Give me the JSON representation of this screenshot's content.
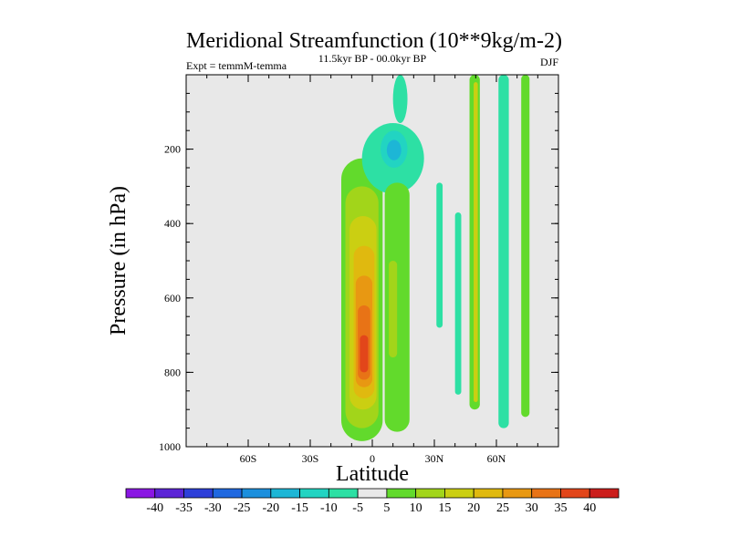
{
  "chart_data": {
    "type": "heatmap",
    "title": "Meridional Streamfunction (10**9kg/m-2)",
    "subtitle_left": "Expt = temmM-temma",
    "subtitle_center": "11.5kyr BP - 00.0kyr BP",
    "subtitle_right": "DJF",
    "xlabel": "Latitude",
    "ylabel": "Pressure (in hPa)",
    "xlim": [
      -90,
      90
    ],
    "ylim": [
      1000,
      0
    ],
    "x_ticks": [
      {
        "value": -60,
        "label": "60S"
      },
      {
        "value": -30,
        "label": "30S"
      },
      {
        "value": 0,
        "label": "0"
      },
      {
        "value": 30,
        "label": "30N"
      },
      {
        "value": 60,
        "label": "60N"
      }
    ],
    "y_ticks": [
      {
        "value": 200,
        "label": "200"
      },
      {
        "value": 400,
        "label": "400"
      },
      {
        "value": 600,
        "label": "600"
      },
      {
        "value": 800,
        "label": "800"
      },
      {
        "value": 1000,
        "label": "1000"
      }
    ],
    "colorbar": {
      "labels": [
        "-40",
        "-35",
        "-30",
        "-25",
        "-20",
        "-15",
        "-10",
        "-5",
        "5",
        "10",
        "15",
        "20",
        "25",
        "30",
        "35",
        "40"
      ],
      "colors": [
        "#8a17e3",
        "#5c24d6",
        "#2d3fd9",
        "#1f68e0",
        "#1c8fdd",
        "#1db6d6",
        "#22d4c2",
        "#2de0a4",
        "#e8e8e8",
        "#62da2c",
        "#a2d51a",
        "#cbcf12",
        "#e0b90f",
        "#e89812",
        "#e87316",
        "#e2461a",
        "#cc1e1c"
      ]
    },
    "regions": [
      {
        "name": "southern-hemisphere-cell-5",
        "level": 5,
        "lat_min": -15,
        "lat_max": 5,
        "p_min": 225,
        "p_max": 985
      },
      {
        "name": "southern-hemisphere-cell-10",
        "level": 10,
        "lat_min": -13,
        "lat_max": 3,
        "p_min": 300,
        "p_max": 950
      },
      {
        "name": "southern-hemisphere-cell-15",
        "level": 15,
        "lat_min": -11,
        "lat_max": 2,
        "p_min": 380,
        "p_max": 900
      },
      {
        "name": "southern-hemisphere-cell-20",
        "level": 20,
        "lat_min": -9,
        "lat_max": 1,
        "p_min": 460,
        "p_max": 870
      },
      {
        "name": "southern-hemisphere-cell-25",
        "level": 25,
        "lat_min": -8,
        "lat_max": 0,
        "p_min": 540,
        "p_max": 840
      },
      {
        "name": "southern-hemisphere-cell-30",
        "level": 30,
        "lat_min": -7,
        "lat_max": -1,
        "p_min": 620,
        "p_max": 820
      },
      {
        "name": "southern-hemisphere-cell-35",
        "level": 35,
        "lat_min": -6,
        "lat_max": -2,
        "p_min": 700,
        "p_max": 800
      },
      {
        "name": "tropical-upper-cell-neg5",
        "level": -5,
        "lat_min": -5,
        "lat_max": 25,
        "p_min": 130,
        "p_max": 320
      },
      {
        "name": "tropical-upper-cell-neg10",
        "level": -10,
        "lat_min": 4,
        "lat_max": 17,
        "p_min": 150,
        "p_max": 250
      },
      {
        "name": "tropical-upper-cell-neg15",
        "level": -15,
        "lat_min": 7,
        "lat_max": 14,
        "p_min": 175,
        "p_max": 230
      },
      {
        "name": "upper-plume-neg5",
        "level": -5,
        "lat_min": 10,
        "lat_max": 17,
        "p_min": 0,
        "p_max": 130
      },
      {
        "name": "northern-cell-5",
        "level": 5,
        "lat_min": 6,
        "lat_max": 18,
        "p_min": 290,
        "p_max": 960
      },
      {
        "name": "northern-cell-10",
        "level": 10,
        "lat_min": 8,
        "lat_max": 12,
        "p_min": 500,
        "p_max": 760
      },
      {
        "name": "band-neg5-a",
        "level": -5,
        "lat_min": 31,
        "lat_max": 34,
        "p_min": 290,
        "p_max": 680
      },
      {
        "name": "band-neg5-b",
        "level": -5,
        "lat_min": 40,
        "lat_max": 43,
        "p_min": 370,
        "p_max": 860
      },
      {
        "name": "band-5-a",
        "level": 5,
        "lat_min": 47,
        "lat_max": 52,
        "p_min": 0,
        "p_max": 900
      },
      {
        "name": "band-15-a",
        "level": 15,
        "lat_min": 49,
        "lat_max": 51,
        "p_min": 20,
        "p_max": 880
      },
      {
        "name": "band-neg5-c",
        "level": -5,
        "lat_min": 61,
        "lat_max": 66,
        "p_min": 0,
        "p_max": 950
      },
      {
        "name": "band-5-b",
        "level": 5,
        "lat_min": 72,
        "lat_max": 76,
        "p_min": 0,
        "p_max": 920
      }
    ]
  }
}
